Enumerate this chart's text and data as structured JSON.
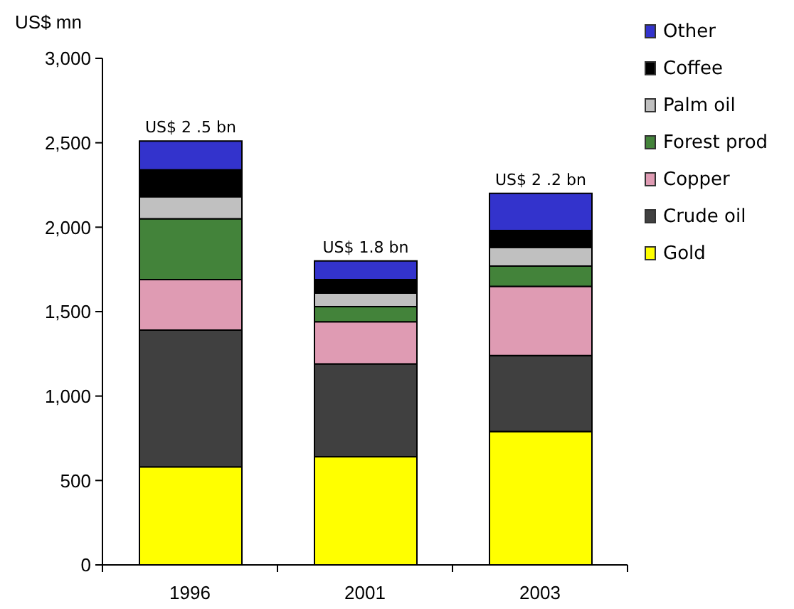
{
  "chart_data": {
    "type": "bar",
    "stacked": true,
    "ylabel": "US$ mn",
    "categories": [
      "1996",
      "2001",
      "2003"
    ],
    "series": [
      {
        "name": "Gold",
        "color": "#ffff00",
        "values": [
          580,
          640,
          790
        ]
      },
      {
        "name": "Crude oil",
        "color": "#404040",
        "values": [
          810,
          550,
          450
        ]
      },
      {
        "name": "Copper",
        "color": "#df9bb3",
        "values": [
          300,
          250,
          410
        ]
      },
      {
        "name": "Forest prod",
        "color": "#43833a",
        "values": [
          360,
          90,
          120
        ]
      },
      {
        "name": "Palm oil",
        "color": "#c0c0c0",
        "values": [
          130,
          80,
          110
        ]
      },
      {
        "name": "Coffee",
        "color": "#000000",
        "values": [
          160,
          80,
          100
        ]
      },
      {
        "name": "Other",
        "color": "#3333cc",
        "values": [
          170,
          110,
          220
        ]
      }
    ],
    "ylim": [
      0,
      3000
    ],
    "yticks": [
      0,
      500,
      {
        "value": 1000,
        "label": "1,000"
      },
      {
        "value": 1500,
        "label": "1,500"
      },
      {
        "value": 2000,
        "label": "2,000"
      },
      {
        "value": 2500,
        "label": "2,500"
      },
      {
        "value": 3000,
        "label": "3,000"
      }
    ],
    "totals": [
      "US$ 2 .5 bn",
      "US$ 1.8 bn",
      "US$ 2 .2 bn"
    ],
    "legend": "top right"
  }
}
